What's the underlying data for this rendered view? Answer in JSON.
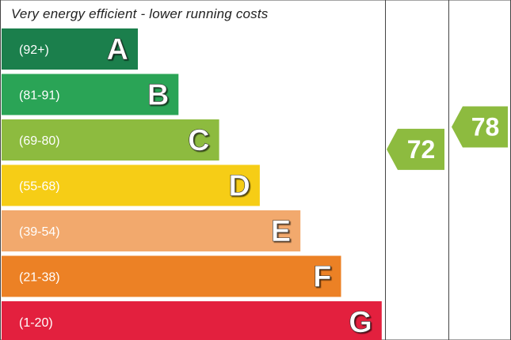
{
  "header": {
    "text": "Very energy efficient - lower running costs"
  },
  "chart_data": {
    "type": "bar",
    "categories": [
      "A",
      "B",
      "C",
      "D",
      "E",
      "F",
      "G"
    ],
    "bands": [
      {
        "letter": "A",
        "range": "(92+)",
        "color": "#1b7f4c"
      },
      {
        "letter": "B",
        "range": "(81-91)",
        "color": "#2aa456"
      },
      {
        "letter": "C",
        "range": "(69-80)",
        "color": "#8dbb3f"
      },
      {
        "letter": "D",
        "range": "(55-68)",
        "color": "#f6cd16"
      },
      {
        "letter": "E",
        "range": "(39-54)",
        "color": "#f2a96d"
      },
      {
        "letter": "F",
        "range": "(21-38)",
        "color": "#ec8125"
      },
      {
        "letter": "G",
        "range": "(1-20)",
        "color": "#e3203e"
      }
    ],
    "ratings": [
      {
        "value": 72,
        "band": "C",
        "color": "#8dbb3f"
      },
      {
        "value": 78,
        "band": "C",
        "color": "#8dbb3f"
      }
    ]
  }
}
